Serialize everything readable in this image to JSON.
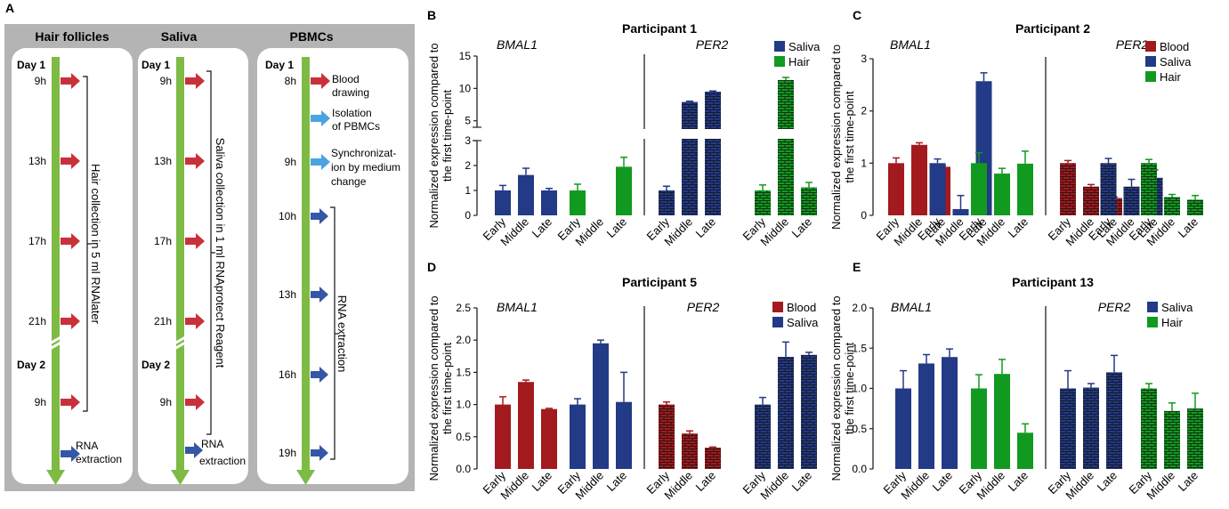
{
  "colors": {
    "blood": "#a31a1e",
    "saliva": "#233a86",
    "hair": "#119a1f",
    "timeline": "#7dbb45",
    "arrow_red": "#c8313c",
    "arrow_blue": "#3457a6",
    "arrow_light": "#4ba3e0",
    "panel_gray": "#b4b4b4"
  },
  "panel_a": {
    "letter": "A",
    "columns": [
      {
        "title": "Hair follicles",
        "day1": "Day 1",
        "day2": "Day 2",
        "times": [
          "9h",
          "13h",
          "17h",
          "21h",
          "9h"
        ],
        "bracket_label": "Hair collection in 5 ml RNAlater",
        "rna_label_1": "RNA",
        "rna_label_2": "extraction"
      },
      {
        "title": "Saliva",
        "day1": "Day 1",
        "day2": "Day 2",
        "times": [
          "9h",
          "13h",
          "17h",
          "21h",
          "9h"
        ],
        "bracket_label": "Saliva collection in 1 ml RNAprotect Reagent",
        "rna_label_1": "RNA",
        "rna_label_2": "extraction"
      },
      {
        "title": "PBMCs",
        "day1": "Day 1",
        "times": [
          "8h",
          "9h",
          "10h",
          "13h",
          "16h",
          "19h"
        ],
        "step1": [
          "Blood",
          "drawing"
        ],
        "step2": [
          "Isolation",
          "of PBMCs"
        ],
        "step3": [
          "Synchronizat-",
          "ion by medium",
          "change"
        ],
        "bracket_label": "RNA extraction"
      }
    ]
  },
  "chart_data": [
    {
      "id": "B",
      "type": "bar",
      "title": "Participant 1",
      "ylabel": "Normalized expression compared to the first time-point",
      "gene_left": "BMAL1",
      "gene_right": "PER2",
      "categories": [
        "Early",
        "Middle",
        "Late"
      ],
      "axis_break": true,
      "ylim": [
        0,
        15
      ],
      "yticks_lower": [
        0,
        1,
        2,
        3
      ],
      "yticks_upper": [
        5,
        10,
        15
      ],
      "legend": [
        "Saliva",
        "Hair"
      ],
      "series": [
        {
          "name": "Saliva",
          "gene": "BMAL1",
          "values": [
            1.0,
            1.62,
            1.0
          ],
          "errors": [
            0.2,
            0.27,
            0.08
          ]
        },
        {
          "name": "Hair",
          "gene": "BMAL1",
          "values": [
            1.0,
            null,
            1.95
          ],
          "errors": [
            0.25,
            null,
            0.38
          ]
        },
        {
          "name": "Saliva",
          "gene": "PER2",
          "values": [
            1.0,
            7.9,
            9.5
          ],
          "errors": [
            0.17,
            0.12,
            0.1
          ]
        },
        {
          "name": "Hair",
          "gene": "PER2",
          "values": [
            1.0,
            11.3,
            1.12
          ],
          "errors": [
            0.22,
            0.4,
            0.2
          ]
        }
      ]
    },
    {
      "id": "C",
      "type": "bar",
      "title": "Participant 2",
      "ylabel": "Normalized expression compared to the first time-point",
      "gene_left": "BMAL1",
      "gene_right": "PER2",
      "categories": [
        "Early",
        "Middle",
        "Late"
      ],
      "ylim": [
        0,
        3
      ],
      "yticks": [
        0,
        1,
        2,
        3
      ],
      "legend": [
        "Blood",
        "Saliva",
        "Hair"
      ],
      "series": [
        {
          "name": "Blood",
          "gene": "BMAL1",
          "values": [
            1.0,
            1.35,
            0.93
          ],
          "errors": [
            0.1,
            0.04,
            0.02
          ]
        },
        {
          "name": "Saliva",
          "gene": "BMAL1",
          "values": [
            1.0,
            0.12,
            2.57
          ],
          "errors": [
            0.08,
            0.26,
            0.16
          ]
        },
        {
          "name": "Hair",
          "gene": "BMAL1",
          "values": [
            1.0,
            0.8,
            0.99
          ],
          "errors": [
            0.2,
            0.1,
            0.24
          ]
        },
        {
          "name": "Blood",
          "gene": "PER2",
          "values": [
            1.0,
            0.55,
            0.33
          ],
          "errors": [
            0.05,
            0.04,
            0.02
          ]
        },
        {
          "name": "Saliva",
          "gene": "PER2",
          "values": [
            1.0,
            0.55,
            0.72
          ],
          "errors": [
            0.09,
            0.14,
            0.15
          ]
        },
        {
          "name": "Hair",
          "gene": "PER2",
          "values": [
            1.0,
            0.35,
            0.3
          ],
          "errors": [
            0.07,
            0.05,
            0.08
          ]
        }
      ]
    },
    {
      "id": "D",
      "type": "bar",
      "title": "Participant 5",
      "ylabel": "Normalized expression compared to the first time-point",
      "gene_left": "BMAL1",
      "gene_right": "PER2",
      "categories": [
        "Early",
        "Middle",
        "Late"
      ],
      "ylim": [
        0,
        2.5
      ],
      "yticks": [
        0.0,
        0.5,
        1.0,
        1.5,
        2.0,
        2.5
      ],
      "legend": [
        "Blood",
        "Saliva"
      ],
      "series": [
        {
          "name": "Blood",
          "gene": "BMAL1",
          "values": [
            1.0,
            1.35,
            0.93
          ],
          "errors": [
            0.12,
            0.03,
            0.01
          ]
        },
        {
          "name": "Saliva",
          "gene": "BMAL1",
          "values": [
            1.0,
            1.95,
            1.04
          ],
          "errors": [
            0.09,
            0.05,
            0.46
          ]
        },
        {
          "name": "Blood",
          "gene": "PER2",
          "values": [
            1.0,
            0.55,
            0.33
          ],
          "errors": [
            0.04,
            0.04,
            0.01
          ]
        },
        {
          "name": "Saliva",
          "gene": "PER2",
          "values": [
            1.0,
            1.74,
            1.77
          ],
          "errors": [
            0.11,
            0.23,
            0.04
          ]
        }
      ]
    },
    {
      "id": "E",
      "type": "bar",
      "title": "Participant 13",
      "ylabel": "Normalized expression compared to the first time-point",
      "gene_left": "BMAL1",
      "gene_right": "PER2",
      "categories": [
        "Early",
        "Middle",
        "Late"
      ],
      "ylim": [
        0,
        2.0
      ],
      "yticks": [
        0.0,
        0.5,
        1.0,
        1.5,
        2.0
      ],
      "legend": [
        "Saliva",
        "Hair"
      ],
      "series": [
        {
          "name": "Saliva",
          "gene": "BMAL1",
          "values": [
            1.0,
            1.31,
            1.39
          ],
          "errors": [
            0.22,
            0.11,
            0.1
          ]
        },
        {
          "name": "Hair",
          "gene": "BMAL1",
          "values": [
            1.0,
            1.18,
            0.45
          ],
          "errors": [
            0.17,
            0.18,
            0.11
          ]
        },
        {
          "name": "Saliva",
          "gene": "PER2",
          "values": [
            1.0,
            1.01,
            1.2
          ],
          "errors": [
            0.22,
            0.05,
            0.21
          ]
        },
        {
          "name": "Hair",
          "gene": "PER2",
          "values": [
            1.0,
            0.72,
            0.75
          ],
          "errors": [
            0.06,
            0.1,
            0.19
          ]
        }
      ]
    }
  ]
}
